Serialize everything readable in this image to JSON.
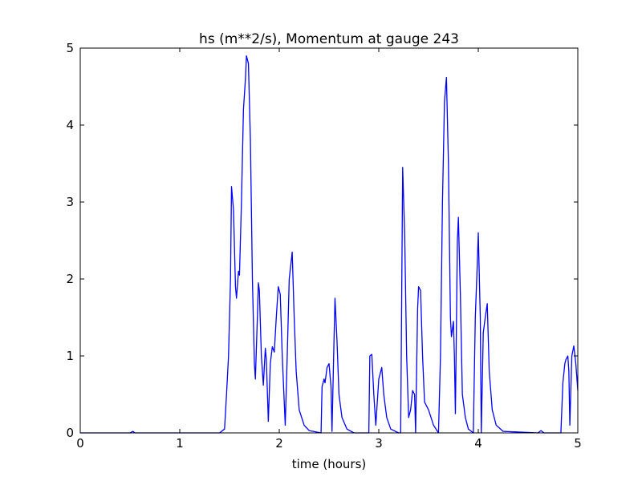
{
  "chart_data": {
    "type": "line",
    "title": "hs (m**2/s), Momentum at gauge 243",
    "xlabel": "time (hours)",
    "ylabel": "",
    "xlim": [
      0,
      5
    ],
    "ylim": [
      0,
      5
    ],
    "xticks": [
      0,
      1,
      2,
      3,
      4,
      5
    ],
    "yticks": [
      0,
      1,
      2,
      3,
      4,
      5
    ],
    "xtick_labels": [
      "0",
      "1",
      "2",
      "3",
      "4",
      "5"
    ],
    "ytick_labels": [
      "0",
      "1",
      "2",
      "3",
      "4",
      "5"
    ],
    "grid": false,
    "reference_line": {
      "y": 0,
      "style": "dashed",
      "color": "#000000"
    },
    "series": [
      {
        "color": "#0000ff",
        "points": [
          [
            0.0,
            0.0
          ],
          [
            0.5,
            0.0
          ],
          [
            0.53,
            0.02
          ],
          [
            0.55,
            0.0
          ],
          [
            1.4,
            0.0
          ],
          [
            1.45,
            0.05
          ],
          [
            1.47,
            0.5
          ],
          [
            1.49,
            1.0
          ],
          [
            1.51,
            2.0
          ],
          [
            1.52,
            3.2
          ],
          [
            1.54,
            2.9
          ],
          [
            1.56,
            1.9
          ],
          [
            1.57,
            1.75
          ],
          [
            1.59,
            2.1
          ],
          [
            1.6,
            2.05
          ],
          [
            1.62,
            3.0
          ],
          [
            1.64,
            4.2
          ],
          [
            1.66,
            4.6
          ],
          [
            1.67,
            4.9
          ],
          [
            1.69,
            4.8
          ],
          [
            1.71,
            3.8
          ],
          [
            1.73,
            2.0
          ],
          [
            1.75,
            0.9
          ],
          [
            1.76,
            0.7
          ],
          [
            1.78,
            1.5
          ],
          [
            1.79,
            1.95
          ],
          [
            1.8,
            1.85
          ],
          [
            1.82,
            1.0
          ],
          [
            1.84,
            0.62
          ],
          [
            1.86,
            1.1
          ],
          [
            1.87,
            0.95
          ],
          [
            1.89,
            0.15
          ],
          [
            1.91,
            0.9
          ],
          [
            1.93,
            1.12
          ],
          [
            1.95,
            1.05
          ],
          [
            1.97,
            1.5
          ],
          [
            1.99,
            1.9
          ],
          [
            2.01,
            1.8
          ],
          [
            2.03,
            1.0
          ],
          [
            2.06,
            0.1
          ],
          [
            2.08,
            1.0
          ],
          [
            2.1,
            2.0
          ],
          [
            2.13,
            2.35
          ],
          [
            2.15,
            1.5
          ],
          [
            2.17,
            0.8
          ],
          [
            2.2,
            0.3
          ],
          [
            2.25,
            0.1
          ],
          [
            2.3,
            0.03
          ],
          [
            2.42,
            0.0
          ],
          [
            2.43,
            0.6
          ],
          [
            2.45,
            0.7
          ],
          [
            2.46,
            0.65
          ],
          [
            2.48,
            0.85
          ],
          [
            2.5,
            0.9
          ],
          [
            2.52,
            0.6
          ],
          [
            2.53,
            0.02
          ],
          [
            2.55,
            1.2
          ],
          [
            2.56,
            1.75
          ],
          [
            2.58,
            1.2
          ],
          [
            2.6,
            0.5
          ],
          [
            2.63,
            0.2
          ],
          [
            2.68,
            0.05
          ],
          [
            2.75,
            0.0
          ],
          [
            2.9,
            0.0
          ],
          [
            2.91,
            1.0
          ],
          [
            2.93,
            1.02
          ],
          [
            2.95,
            0.5
          ],
          [
            2.97,
            0.1
          ],
          [
            3.0,
            0.7
          ],
          [
            3.03,
            0.85
          ],
          [
            3.05,
            0.5
          ],
          [
            3.08,
            0.2
          ],
          [
            3.12,
            0.05
          ],
          [
            3.2,
            0.0
          ],
          [
            3.22,
            0.0
          ],
          [
            3.24,
            3.45
          ],
          [
            3.26,
            2.6
          ],
          [
            3.28,
            1.0
          ],
          [
            3.3,
            0.2
          ],
          [
            3.32,
            0.3
          ],
          [
            3.34,
            0.55
          ],
          [
            3.36,
            0.5
          ],
          [
            3.37,
            0.0
          ],
          [
            3.39,
            1.6
          ],
          [
            3.4,
            1.9
          ],
          [
            3.42,
            1.85
          ],
          [
            3.44,
            1.0
          ],
          [
            3.46,
            0.4
          ],
          [
            3.5,
            0.3
          ],
          [
            3.55,
            0.1
          ],
          [
            3.6,
            0.0
          ],
          [
            3.62,
            1.0
          ],
          [
            3.64,
            3.0
          ],
          [
            3.66,
            4.3
          ],
          [
            3.68,
            4.62
          ],
          [
            3.7,
            3.5
          ],
          [
            3.72,
            1.5
          ],
          [
            3.73,
            1.25
          ],
          [
            3.75,
            1.45
          ],
          [
            3.76,
            1.0
          ],
          [
            3.77,
            0.25
          ],
          [
            3.79,
            2.5
          ],
          [
            3.8,
            2.8
          ],
          [
            3.82,
            1.8
          ],
          [
            3.84,
            0.5
          ],
          [
            3.87,
            0.2
          ],
          [
            3.9,
            0.05
          ],
          [
            3.95,
            0.0
          ],
          [
            3.97,
            1.5
          ],
          [
            3.99,
            2.2
          ],
          [
            4.0,
            2.6
          ],
          [
            4.02,
            1.5
          ],
          [
            4.03,
            0.0
          ],
          [
            4.05,
            1.3
          ],
          [
            4.07,
            1.5
          ],
          [
            4.09,
            1.68
          ],
          [
            4.11,
            0.8
          ],
          [
            4.14,
            0.3
          ],
          [
            4.18,
            0.1
          ],
          [
            4.25,
            0.02
          ],
          [
            4.6,
            0.0
          ],
          [
            4.63,
            0.03
          ],
          [
            4.66,
            0.0
          ],
          [
            4.83,
            0.0
          ],
          [
            4.85,
            0.65
          ],
          [
            4.87,
            0.9
          ],
          [
            4.88,
            0.95
          ],
          [
            4.9,
            1.0
          ],
          [
            4.91,
            0.8
          ],
          [
            4.92,
            0.1
          ],
          [
            4.94,
            1.0
          ],
          [
            4.96,
            1.13
          ],
          [
            4.98,
            0.9
          ],
          [
            5.0,
            0.55
          ]
        ]
      }
    ]
  }
}
